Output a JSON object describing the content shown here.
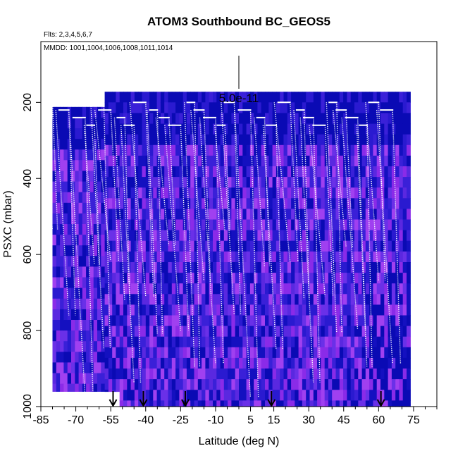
{
  "chart_data": {
    "type": "heatmap",
    "title": "ATOM3 Southbound BC_GEOS5",
    "flights_note": "Flts: 2,3,4,5,6,7",
    "dates_note": "MMDD: 1001,1004,1006,1008,1011,1014",
    "scale_label": "5.0e-11",
    "xlabel": "Latitude (deg N)",
    "ylabel": "PSXC (mbar)",
    "xlim": [
      -85,
      85
    ],
    "ylim": [
      1000,
      40
    ],
    "x_ticks": [
      -85,
      -70,
      -55,
      -40,
      -25,
      -10,
      5,
      15,
      30,
      45,
      60,
      75
    ],
    "y_ticks": [
      200,
      400,
      600,
      800,
      1000
    ],
    "arrows_x": [
      -54,
      -41,
      -23,
      14,
      61
    ],
    "colors": {
      "deep_blue": "#0a0ab4",
      "mid_blue": "#2a1ad0",
      "violet": "#8a2be8",
      "light_violet": "#a040f0",
      "track": "#ffffff",
      "axis": "#000000"
    },
    "profile_x": [
      -80,
      -73,
      -66,
      -62,
      -58,
      -55,
      -49,
      -45,
      -40,
      -35,
      -30,
      -25,
      -19,
      -15,
      -10,
      -6,
      -2,
      5,
      11,
      16,
      22,
      28,
      32,
      37,
      42,
      46,
      51,
      55,
      60,
      66
    ]
  }
}
